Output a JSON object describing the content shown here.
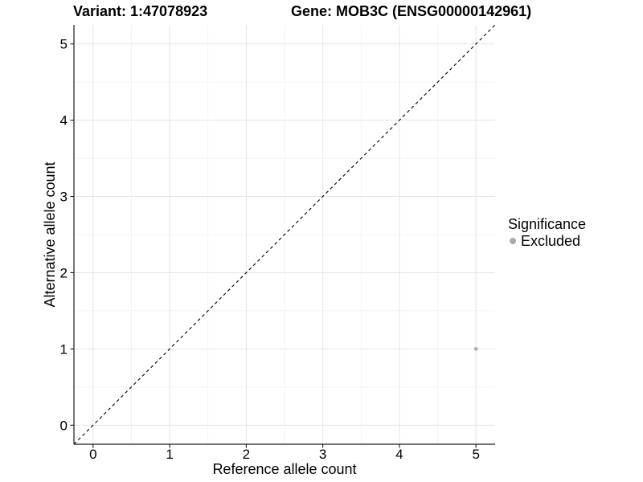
{
  "chart_data": {
    "type": "scatter",
    "title_left": "Variant: 1:47078923",
    "title_right": "Gene: MOB3C (ENSG00000142961)",
    "xlabel": "Reference allele count",
    "ylabel": "Alternative allele count",
    "xlim": [
      -0.25,
      5.25
    ],
    "ylim": [
      -0.25,
      5.25
    ],
    "x_ticks": [
      0,
      1,
      2,
      3,
      4,
      5
    ],
    "y_ticks": [
      0,
      1,
      2,
      3,
      4,
      5
    ],
    "grid": "major-and-minor",
    "points": [
      {
        "x": 5,
        "y": 1,
        "series": "Excluded"
      }
    ],
    "reference_line": {
      "type": "identity",
      "from": [
        -0.25,
        -0.25
      ],
      "to": [
        5.25,
        5.25
      ],
      "style": "dashed",
      "color": "#000000"
    },
    "legend": {
      "title": "Significance",
      "position": "right",
      "items": [
        {
          "label": "Excluded",
          "color": "#aaaaaa",
          "marker": "circle"
        }
      ]
    },
    "colors": {
      "point": "#aeaeae",
      "grid_major": "#e4e4e4",
      "grid_minor": "#f1f1f1",
      "axis": "#1a1a1a",
      "text": "#000000",
      "background": "#ffffff"
    }
  }
}
